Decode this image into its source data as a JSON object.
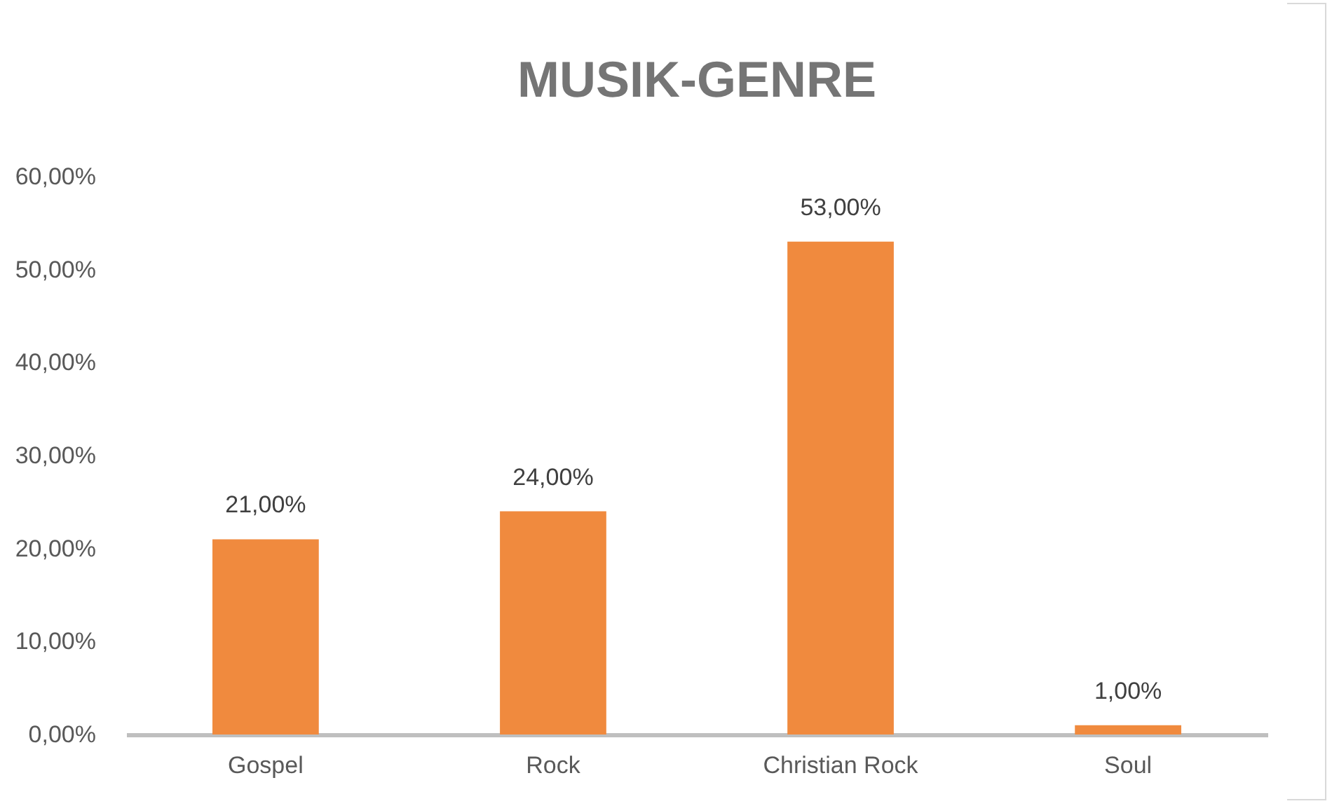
{
  "chart_data": {
    "type": "bar",
    "title": "MUSIK-GENRE",
    "categories": [
      "Gospel",
      "Rock",
      "Christian Rock",
      "Soul"
    ],
    "values": [
      21,
      24,
      53,
      1
    ],
    "value_labels": [
      "21,00%",
      "24,00%",
      "53,00%",
      "1,00%"
    ],
    "color": "#f08a3e",
    "ylim": [
      0,
      60
    ],
    "yticks": [
      {
        "value": 0,
        "label": "0,00%"
      },
      {
        "value": 10,
        "label": "10,00%"
      },
      {
        "value": 20,
        "label": "20,00%"
      },
      {
        "value": 30,
        "label": "30,00%"
      },
      {
        "value": 40,
        "label": "40,00%"
      },
      {
        "value": 50,
        "label": "50,00%"
      },
      {
        "value": 60,
        "label": "60,00%"
      }
    ],
    "grid": false
  }
}
